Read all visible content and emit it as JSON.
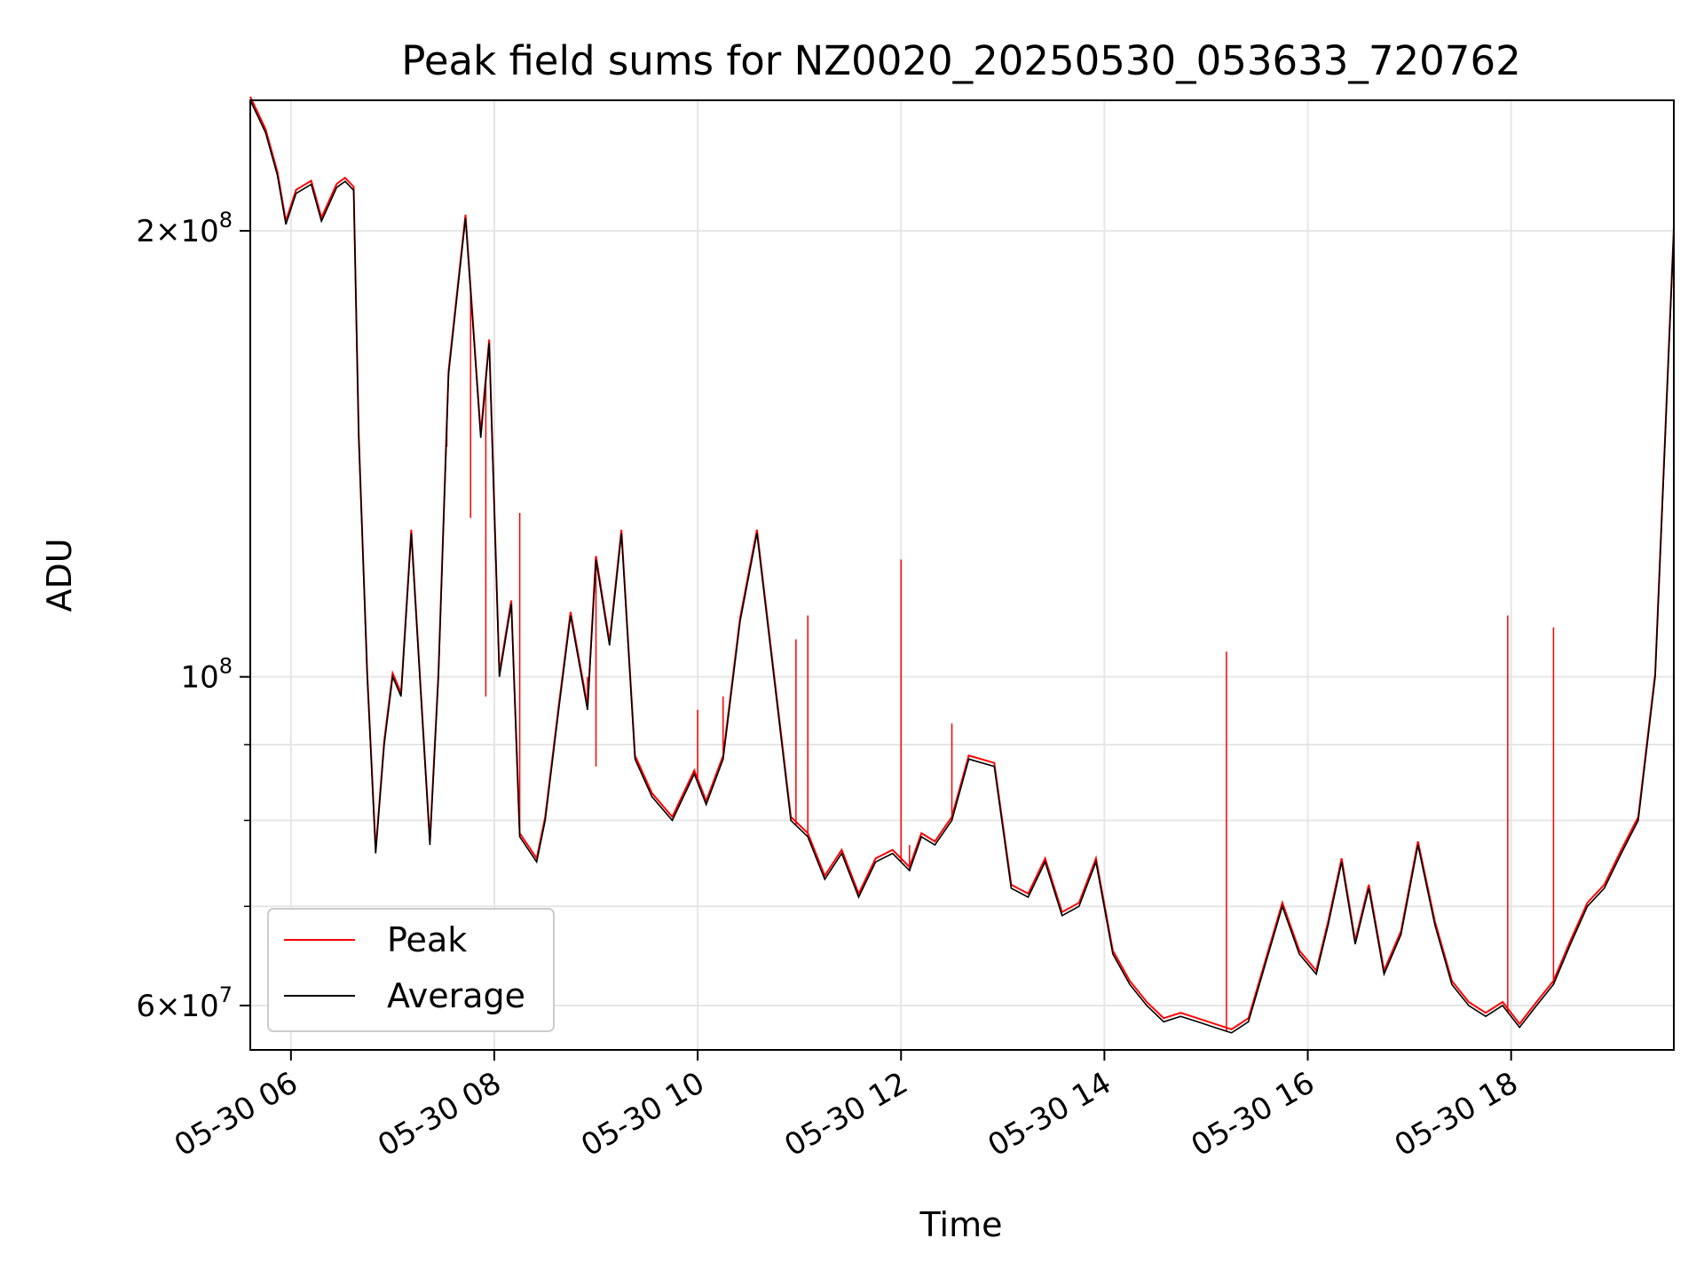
{
  "chart_data": {
    "type": "line",
    "title": "Peak field sums for NZ0020_20250530_053633_720762",
    "xlabel": "Time",
    "ylabel": "ADU",
    "yscale": "log",
    "ylim": [
      56000000,
      245000000
    ],
    "xlim": [
      "2025-05-30 05:36",
      "2025-05-30 19:36"
    ],
    "grid": true,
    "legend_position": "lower-left",
    "x_ticks": [
      {
        "t": "2025-05-30 06:00",
        "label": "05-30 06"
      },
      {
        "t": "2025-05-30 08:00",
        "label": "05-30 08"
      },
      {
        "t": "2025-05-30 10:00",
        "label": "05-30 10"
      },
      {
        "t": "2025-05-30 12:00",
        "label": "05-30 12"
      },
      {
        "t": "2025-05-30 14:00",
        "label": "05-30 14"
      },
      {
        "t": "2025-05-30 16:00",
        "label": "05-30 16"
      },
      {
        "t": "2025-05-30 18:00",
        "label": "05-30 18"
      }
    ],
    "y_ticks_major": [
      {
        "value": 60000000,
        "base": "6×10",
        "exp": "7"
      },
      {
        "value": 100000000,
        "base": "10",
        "exp": "8"
      },
      {
        "value": 200000000,
        "base": "2×10",
        "exp": "8"
      }
    ],
    "y_ticks_minor": [
      70000000,
      80000000,
      90000000
    ],
    "series": [
      {
        "name": "Peak",
        "color": "#ff0000",
        "spikes": [
          [
            "2025-05-30 07:32",
            143000000
          ],
          [
            "2025-05-30 07:46",
            128000000
          ],
          [
            "2025-05-30 07:55",
            97000000
          ],
          [
            "2025-05-30 08:15",
            129000000
          ],
          [
            "2025-05-30 08:55",
            100000000
          ],
          [
            "2025-05-30 09:00",
            87000000
          ],
          [
            "2025-05-30 10:00",
            95000000
          ],
          [
            "2025-05-30 10:15",
            97000000
          ],
          [
            "2025-05-30 10:58",
            106000000
          ],
          [
            "2025-05-30 11:05",
            110000000
          ],
          [
            "2025-05-30 12:00",
            120000000
          ],
          [
            "2025-05-30 12:05",
            77000000
          ],
          [
            "2025-05-30 12:30",
            93000000
          ],
          [
            "2025-05-30 15:12",
            104000000
          ],
          [
            "2025-05-30 17:58",
            110000000
          ],
          [
            "2025-05-30 18:25",
            108000000
          ]
        ]
      },
      {
        "name": "Average",
        "color": "#000000",
        "points": [
          [
            "2025-05-30 05:36",
            245000000
          ],
          [
            "2025-05-30 05:45",
            233000000
          ],
          [
            "2025-05-30 05:52",
            218000000
          ],
          [
            "2025-05-30 05:57",
            202000000
          ],
          [
            "2025-05-30 06:03",
            212000000
          ],
          [
            "2025-05-30 06:12",
            215000000
          ],
          [
            "2025-05-30 06:18",
            203000000
          ],
          [
            "2025-05-30 06:27",
            214000000
          ],
          [
            "2025-05-30 06:32",
            216000000
          ],
          [
            "2025-05-30 06:37",
            213000000
          ],
          [
            "2025-05-30 06:40",
            145000000
          ],
          [
            "2025-05-30 06:45",
            100000000
          ],
          [
            "2025-05-30 06:50",
            76000000
          ],
          [
            "2025-05-30 06:55",
            90000000
          ],
          [
            "2025-05-30 07:00",
            100000000
          ],
          [
            "2025-05-30 07:05",
            97000000
          ],
          [
            "2025-05-30 07:11",
            125000000
          ],
          [
            "2025-05-30 07:16",
            100000000
          ],
          [
            "2025-05-30 07:22",
            77000000
          ],
          [
            "2025-05-30 07:27",
            100000000
          ],
          [
            "2025-05-30 07:33",
            160000000
          ],
          [
            "2025-05-30 07:43",
            204000000
          ],
          [
            "2025-05-30 07:52",
            145000000
          ],
          [
            "2025-05-30 07:57",
            168000000
          ],
          [
            "2025-05-30 08:03",
            100000000
          ],
          [
            "2025-05-30 08:10",
            112000000
          ],
          [
            "2025-05-30 08:15",
            78000000
          ],
          [
            "2025-05-30 08:25",
            75000000
          ],
          [
            "2025-05-30 08:30",
            80000000
          ],
          [
            "2025-05-30 08:38",
            95000000
          ],
          [
            "2025-05-30 08:45",
            110000000
          ],
          [
            "2025-05-30 08:55",
            95000000
          ],
          [
            "2025-05-30 09:00",
            120000000
          ],
          [
            "2025-05-30 09:08",
            105000000
          ],
          [
            "2025-05-30 09:15",
            125000000
          ],
          [
            "2025-05-30 09:23",
            88000000
          ],
          [
            "2025-05-30 09:33",
            83000000
          ],
          [
            "2025-05-30 09:45",
            80000000
          ],
          [
            "2025-05-30 09:58",
            86000000
          ],
          [
            "2025-05-30 10:05",
            82000000
          ],
          [
            "2025-05-30 10:15",
            88000000
          ],
          [
            "2025-05-30 10:25",
            109000000
          ],
          [
            "2025-05-30 10:35",
            125000000
          ],
          [
            "2025-05-30 10:45",
            100000000
          ],
          [
            "2025-05-30 10:55",
            80000000
          ],
          [
            "2025-05-30 11:05",
            78000000
          ],
          [
            "2025-05-30 11:15",
            73000000
          ],
          [
            "2025-05-30 11:25",
            76000000
          ],
          [
            "2025-05-30 11:35",
            71000000
          ],
          [
            "2025-05-30 11:45",
            75000000
          ],
          [
            "2025-05-30 11:55",
            76000000
          ],
          [
            "2025-05-30 12:05",
            74000000
          ],
          [
            "2025-05-30 12:12",
            78000000
          ],
          [
            "2025-05-30 12:20",
            77000000
          ],
          [
            "2025-05-30 12:30",
            80000000
          ],
          [
            "2025-05-30 12:40",
            88000000
          ],
          [
            "2025-05-30 12:55",
            87000000
          ],
          [
            "2025-05-30 13:05",
            72000000
          ],
          [
            "2025-05-30 13:15",
            71000000
          ],
          [
            "2025-05-30 13:25",
            75000000
          ],
          [
            "2025-05-30 13:35",
            69000000
          ],
          [
            "2025-05-30 13:45",
            70000000
          ],
          [
            "2025-05-30 13:55",
            75000000
          ],
          [
            "2025-05-30 14:05",
            65000000
          ],
          [
            "2025-05-30 14:15",
            62000000
          ],
          [
            "2025-05-30 14:25",
            60000000
          ],
          [
            "2025-05-30 14:35",
            58500000
          ],
          [
            "2025-05-30 14:45",
            59000000
          ],
          [
            "2025-05-30 14:55",
            58500000
          ],
          [
            "2025-05-30 15:05",
            58000000
          ],
          [
            "2025-05-30 15:15",
            57500000
          ],
          [
            "2025-05-30 15:25",
            58500000
          ],
          [
            "2025-05-30 15:35",
            64000000
          ],
          [
            "2025-05-30 15:45",
            70000000
          ],
          [
            "2025-05-30 15:55",
            65000000
          ],
          [
            "2025-05-30 16:05",
            63000000
          ],
          [
            "2025-05-30 16:12",
            68000000
          ],
          [
            "2025-05-30 16:20",
            75000000
          ],
          [
            "2025-05-30 16:28",
            66000000
          ],
          [
            "2025-05-30 16:36",
            72000000
          ],
          [
            "2025-05-30 16:45",
            63000000
          ],
          [
            "2025-05-30 16:55",
            67000000
          ],
          [
            "2025-05-30 17:05",
            77000000
          ],
          [
            "2025-05-30 17:15",
            68000000
          ],
          [
            "2025-05-30 17:25",
            62000000
          ],
          [
            "2025-05-30 17:35",
            60000000
          ],
          [
            "2025-05-30 17:45",
            59000000
          ],
          [
            "2025-05-30 17:55",
            60000000
          ],
          [
            "2025-05-30 18:05",
            58000000
          ],
          [
            "2025-05-30 18:15",
            60000000
          ],
          [
            "2025-05-30 18:25",
            62000000
          ],
          [
            "2025-05-30 18:35",
            66000000
          ],
          [
            "2025-05-30 18:45",
            70000000
          ],
          [
            "2025-05-30 18:55",
            72000000
          ],
          [
            "2025-05-30 19:05",
            76000000
          ],
          [
            "2025-05-30 19:15",
            80000000
          ],
          [
            "2025-05-30 19:25",
            100000000
          ],
          [
            "2025-05-30 19:36",
            200000000
          ]
        ]
      }
    ]
  }
}
